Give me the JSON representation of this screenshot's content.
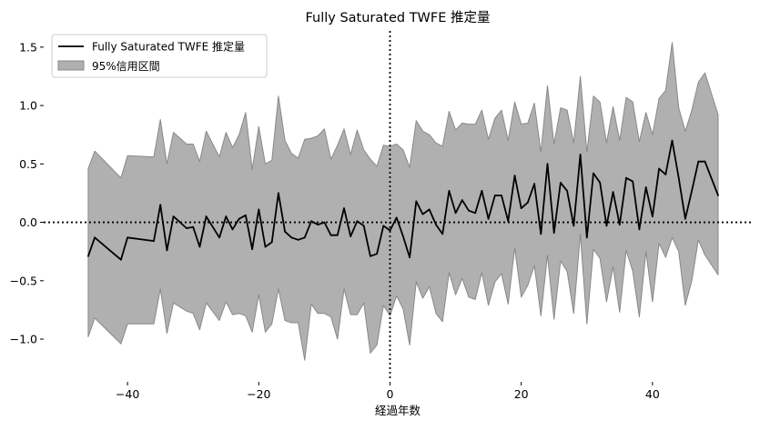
{
  "chart_data": {
    "type": "line",
    "title": "Fully Saturated TWFE 推定量",
    "xlabel": "経過年数",
    "ylabel": "",
    "xlim": [
      -52.5,
      55
    ],
    "ylim": [
      -1.35,
      1.67
    ],
    "xticks": [
      -40,
      -20,
      0,
      20,
      40
    ],
    "yticks": [
      -1.0,
      -0.5,
      0.0,
      0.5,
      1.0,
      1.5
    ],
    "xtick_labels": [
      "−40",
      "−20",
      "0",
      "20",
      "40"
    ],
    "ytick_labels": [
      "−1.0",
      "−0.5",
      "0.0",
      "0.5",
      "1.0",
      "1.5"
    ],
    "reference_lines": {
      "horizontal_y": 0,
      "vertical_x": 0,
      "style": "dotted"
    },
    "grid": false,
    "legend": {
      "position": "top-left",
      "entries": [
        "Fully Saturated TWFE 推定量",
        "95%信用区間"
      ]
    },
    "colors": {
      "line": "#000000",
      "band_fill": "#b0b0b0",
      "band_edge": "#888888"
    },
    "series": [
      {
        "name": "Fully Saturated TWFE 推定量",
        "points": [
          [
            -46,
            -0.29
          ],
          [
            -45,
            -0.13
          ],
          [
            -41,
            -0.32
          ],
          [
            -40,
            -0.13
          ],
          [
            -36,
            -0.16
          ],
          [
            -35,
            0.15
          ],
          [
            -34,
            -0.24
          ],
          [
            -33,
            0.05
          ],
          [
            -31,
            -0.05
          ],
          [
            -30,
            -0.04
          ],
          [
            -29,
            -0.21
          ],
          [
            -28,
            0.05
          ],
          [
            -26,
            -0.13
          ],
          [
            -25,
            0.05
          ],
          [
            -24,
            -0.06
          ],
          [
            -23,
            0.03
          ],
          [
            -22,
            0.06
          ],
          [
            -21,
            -0.23
          ],
          [
            -20,
            0.11
          ],
          [
            -19,
            -0.21
          ],
          [
            -18,
            -0.17
          ],
          [
            -17,
            0.25
          ],
          [
            -16,
            -0.08
          ],
          [
            -15,
            -0.13
          ],
          [
            -14,
            -0.15
          ],
          [
            -13,
            -0.13
          ],
          [
            -12,
            0.01
          ],
          [
            -11,
            -0.02
          ],
          [
            -10,
            0.0
          ],
          [
            -9,
            -0.11
          ],
          [
            -8,
            -0.11
          ],
          [
            -7,
            0.12
          ],
          [
            -6,
            -0.12
          ],
          [
            -5,
            0.01
          ],
          [
            -4,
            -0.03
          ],
          [
            -3,
            -0.29
          ],
          [
            -2,
            -0.27
          ],
          [
            -1,
            -0.03
          ],
          [
            0,
            -0.07
          ],
          [
            1,
            0.04
          ],
          [
            2,
            -0.12
          ],
          [
            3,
            -0.3
          ],
          [
            4,
            0.18
          ],
          [
            5,
            0.07
          ],
          [
            6,
            0.11
          ],
          [
            7,
            -0.02
          ],
          [
            8,
            -0.1
          ],
          [
            9,
            0.27
          ],
          [
            10,
            0.08
          ],
          [
            11,
            0.19
          ],
          [
            12,
            0.1
          ],
          [
            13,
            0.08
          ],
          [
            14,
            0.27
          ],
          [
            15,
            0.03
          ],
          [
            16,
            0.23
          ],
          [
            17,
            0.23
          ],
          [
            18,
            0.01
          ],
          [
            19,
            0.4
          ],
          [
            20,
            0.12
          ],
          [
            21,
            0.17
          ],
          [
            22,
            0.33
          ],
          [
            23,
            -0.1
          ],
          [
            24,
            0.5
          ],
          [
            25,
            -0.09
          ],
          [
            26,
            0.34
          ],
          [
            27,
            0.27
          ],
          [
            28,
            -0.03
          ],
          [
            29,
            0.58
          ],
          [
            30,
            -0.13
          ],
          [
            31,
            0.42
          ],
          [
            32,
            0.34
          ],
          [
            33,
            -0.03
          ],
          [
            34,
            0.26
          ],
          [
            35,
            -0.02
          ],
          [
            36,
            0.38
          ],
          [
            37,
            0.35
          ],
          [
            38,
            -0.06
          ],
          [
            39,
            0.3
          ],
          [
            40,
            0.05
          ],
          [
            41,
            0.46
          ],
          [
            42,
            0.41
          ],
          [
            43,
            0.7
          ],
          [
            44,
            0.38
          ],
          [
            45,
            0.03
          ],
          [
            46,
            0.27
          ],
          [
            47,
            0.52
          ],
          [
            48,
            0.52
          ],
          [
            50,
            0.23
          ]
        ]
      },
      {
        "name": "95%信用区間",
        "type": "band",
        "upper": [
          [
            -46,
            0.46
          ],
          [
            -45,
            0.61
          ],
          [
            -41,
            0.38
          ],
          [
            -40,
            0.57
          ],
          [
            -36,
            0.56
          ],
          [
            -35,
            0.88
          ],
          [
            -34,
            0.5
          ],
          [
            -33,
            0.77
          ],
          [
            -31,
            0.67
          ],
          [
            -30,
            0.67
          ],
          [
            -29,
            0.52
          ],
          [
            -28,
            0.78
          ],
          [
            -26,
            0.56
          ],
          [
            -25,
            0.77
          ],
          [
            -24,
            0.64
          ],
          [
            -23,
            0.75
          ],
          [
            -22,
            0.94
          ],
          [
            -21,
            0.45
          ],
          [
            -20,
            0.82
          ],
          [
            -19,
            0.5
          ],
          [
            -18,
            0.53
          ],
          [
            -17,
            1.08
          ],
          [
            -16,
            0.7
          ],
          [
            -15,
            0.59
          ],
          [
            -14,
            0.55
          ],
          [
            -13,
            0.71
          ],
          [
            -12,
            0.72
          ],
          [
            -11,
            0.74
          ],
          [
            -10,
            0.8
          ],
          [
            -9,
            0.54
          ],
          [
            -8,
            0.66
          ],
          [
            -7,
            0.8
          ],
          [
            -6,
            0.58
          ],
          [
            -5,
            0.79
          ],
          [
            -4,
            0.62
          ],
          [
            -3,
            0.54
          ],
          [
            -2,
            0.48
          ],
          [
            -1,
            0.66
          ],
          [
            0,
            0.65
          ],
          [
            1,
            0.67
          ],
          [
            2,
            0.62
          ],
          [
            3,
            0.47
          ],
          [
            4,
            0.87
          ],
          [
            5,
            0.78
          ],
          [
            6,
            0.75
          ],
          [
            7,
            0.68
          ],
          [
            8,
            0.65
          ],
          [
            9,
            0.95
          ],
          [
            10,
            0.79
          ],
          [
            11,
            0.85
          ],
          [
            12,
            0.84
          ],
          [
            13,
            0.84
          ],
          [
            14,
            0.96
          ],
          [
            15,
            0.71
          ],
          [
            16,
            0.89
          ],
          [
            17,
            0.96
          ],
          [
            18,
            0.7
          ],
          [
            19,
            1.03
          ],
          [
            20,
            0.84
          ],
          [
            21,
            0.85
          ],
          [
            22,
            1.02
          ],
          [
            23,
            0.6
          ],
          [
            24,
            1.17
          ],
          [
            25,
            0.67
          ],
          [
            26,
            0.98
          ],
          [
            27,
            0.96
          ],
          [
            28,
            0.68
          ],
          [
            29,
            1.25
          ],
          [
            30,
            0.6
          ],
          [
            31,
            1.08
          ],
          [
            32,
            1.03
          ],
          [
            33,
            0.68
          ],
          [
            34,
            0.99
          ],
          [
            35,
            0.7
          ],
          [
            36,
            1.07
          ],
          [
            37,
            1.03
          ],
          [
            38,
            0.69
          ],
          [
            39,
            0.94
          ],
          [
            40,
            0.75
          ],
          [
            41,
            1.06
          ],
          [
            42,
            1.13
          ],
          [
            43,
            1.54
          ],
          [
            44,
            0.98
          ],
          [
            45,
            0.78
          ],
          [
            46,
            0.96
          ],
          [
            47,
            1.2
          ],
          [
            48,
            1.28
          ],
          [
            50,
            0.92
          ]
        ],
        "lower": [
          [
            -46,
            -0.98
          ],
          [
            -45,
            -0.82
          ],
          [
            -41,
            -1.04
          ],
          [
            -40,
            -0.87
          ],
          [
            -36,
            -0.87
          ],
          [
            -35,
            -0.57
          ],
          [
            -34,
            -0.95
          ],
          [
            -33,
            -0.69
          ],
          [
            -31,
            -0.76
          ],
          [
            -30,
            -0.78
          ],
          [
            -29,
            -0.92
          ],
          [
            -28,
            -0.69
          ],
          [
            -26,
            -0.84
          ],
          [
            -25,
            -0.68
          ],
          [
            -24,
            -0.79
          ],
          [
            -23,
            -0.78
          ],
          [
            -22,
            -0.8
          ],
          [
            -21,
            -0.94
          ],
          [
            -20,
            -0.62
          ],
          [
            -19,
            -0.94
          ],
          [
            -18,
            -0.87
          ],
          [
            -17,
            -0.57
          ],
          [
            -16,
            -0.84
          ],
          [
            -15,
            -0.86
          ],
          [
            -14,
            -0.86
          ],
          [
            -13,
            -1.18
          ],
          [
            -12,
            -0.7
          ],
          [
            -11,
            -0.78
          ],
          [
            -10,
            -0.78
          ],
          [
            -9,
            -0.81
          ],
          [
            -8,
            -1.0
          ],
          [
            -7,
            -0.57
          ],
          [
            -6,
            -0.79
          ],
          [
            -5,
            -0.79
          ],
          [
            -4,
            -0.69
          ],
          [
            -3,
            -1.12
          ],
          [
            -2,
            -1.05
          ],
          [
            -1,
            -0.71
          ],
          [
            0,
            -0.8
          ],
          [
            1,
            -0.63
          ],
          [
            2,
            -0.74
          ],
          [
            3,
            -1.05
          ],
          [
            4,
            -0.51
          ],
          [
            5,
            -0.65
          ],
          [
            6,
            -0.55
          ],
          [
            7,
            -0.78
          ],
          [
            8,
            -0.85
          ],
          [
            9,
            -0.43
          ],
          [
            10,
            -0.62
          ],
          [
            11,
            -0.48
          ],
          [
            12,
            -0.64
          ],
          [
            13,
            -0.66
          ],
          [
            14,
            -0.43
          ],
          [
            15,
            -0.71
          ],
          [
            16,
            -0.51
          ],
          [
            17,
            -0.44
          ],
          [
            18,
            -0.7
          ],
          [
            19,
            -0.22
          ],
          [
            20,
            -0.64
          ],
          [
            21,
            -0.54
          ],
          [
            22,
            -0.37
          ],
          [
            23,
            -0.8
          ],
          [
            24,
            -0.28
          ],
          [
            25,
            -0.83
          ],
          [
            26,
            -0.33
          ],
          [
            27,
            -0.42
          ],
          [
            28,
            -0.78
          ],
          [
            29,
            -0.1
          ],
          [
            30,
            -0.87
          ],
          [
            31,
            -0.23
          ],
          [
            32,
            -0.31
          ],
          [
            33,
            -0.68
          ],
          [
            34,
            -0.38
          ],
          [
            35,
            -0.77
          ],
          [
            36,
            -0.24
          ],
          [
            37,
            -0.42
          ],
          [
            38,
            -0.81
          ],
          [
            39,
            -0.25
          ],
          [
            40,
            -0.68
          ],
          [
            41,
            -0.18
          ],
          [
            42,
            -0.3
          ],
          [
            43,
            -0.13
          ],
          [
            44,
            -0.25
          ],
          [
            45,
            -0.71
          ],
          [
            46,
            -0.5
          ],
          [
            47,
            -0.15
          ],
          [
            48,
            -0.28
          ],
          [
            50,
            -0.45
          ]
        ]
      }
    ]
  }
}
